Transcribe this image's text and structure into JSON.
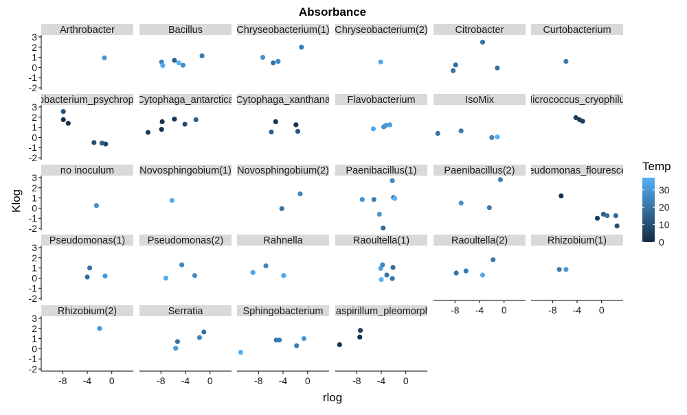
{
  "chart_data": {
    "type": "scatter",
    "title": "Absorbance",
    "xlabel": "rlog",
    "ylabel": "Klog",
    "xlim": [
      -11.5,
      3.5
    ],
    "ylim": [
      -2.2,
      3.2
    ],
    "x_ticks": [
      -8,
      -4,
      0
    ],
    "y_ticks": [
      -2,
      -1,
      0,
      1,
      2,
      3
    ],
    "grid": false,
    "legend_position": "right",
    "color_legend": {
      "title": "Temp",
      "range": [
        0,
        37
      ],
      "ticks": [
        0,
        10,
        20,
        30
      ],
      "color_low": "#132B43",
      "color_high": "#56B1F7"
    },
    "panels": [
      {
        "label": "Arthrobacter",
        "points": [
          [
            -1.2,
            0.95,
            30
          ]
        ]
      },
      {
        "label": "Bacillus",
        "points": [
          [
            -7.9,
            0.55,
            25
          ],
          [
            -7.7,
            0.2,
            35
          ],
          [
            -5.8,
            0.7,
            15
          ],
          [
            -5.1,
            0.45,
            37
          ],
          [
            -4.4,
            0.22,
            27
          ],
          [
            -1.3,
            1.15,
            22
          ]
        ]
      },
      {
        "label": "Chryseobacterium(1)",
        "points": [
          [
            -7.3,
            1.0,
            28
          ],
          [
            -5.6,
            0.45,
            20
          ],
          [
            -4.8,
            0.6,
            25
          ],
          [
            -1.0,
            2.0,
            22
          ]
        ]
      },
      {
        "label": "Chryseobacterium(2)",
        "points": [
          [
            -4.1,
            0.55,
            35
          ]
        ]
      },
      {
        "label": "Citrobacter",
        "points": [
          [
            -8.3,
            -0.3,
            20
          ],
          [
            -7.9,
            0.25,
            18
          ],
          [
            -3.5,
            2.5,
            20
          ],
          [
            -1.1,
            -0.05,
            20
          ]
        ]
      },
      {
        "label": "Curtobacterium",
        "points": [
          [
            -5.8,
            0.6,
            22
          ]
        ]
      },
      {
        "label": "Arthrobacterium_psychrophilum",
        "points": [
          [
            -7.9,
            2.55,
            12
          ],
          [
            -7.9,
            1.75,
            2
          ],
          [
            -7.1,
            1.4,
            2
          ],
          [
            -2.9,
            -0.5,
            10
          ],
          [
            -1.6,
            -0.55,
            15
          ],
          [
            -1.0,
            -0.65,
            8
          ]
        ]
      },
      {
        "label": "Cytophaga_antarctica",
        "points": [
          [
            -10.1,
            0.5,
            5
          ],
          [
            -7.8,
            1.55,
            2
          ],
          [
            -7.9,
            0.8,
            2
          ],
          [
            -5.8,
            1.8,
            2
          ],
          [
            -4.1,
            1.3,
            10
          ],
          [
            -2.3,
            1.75,
            15
          ]
        ]
      },
      {
        "label": "Cytophaga_xanthana",
        "points": [
          [
            -5.2,
            1.55,
            2
          ],
          [
            -5.9,
            0.55,
            15
          ],
          [
            -1.9,
            1.25,
            2
          ],
          [
            -1.6,
            0.6,
            12
          ]
        ]
      },
      {
        "label": "Flavobacterium",
        "points": [
          [
            -5.3,
            0.85,
            35
          ],
          [
            -3.6,
            1.05,
            28
          ],
          [
            -3.2,
            1.2,
            30
          ],
          [
            -2.6,
            1.25,
            33
          ]
        ]
      },
      {
        "label": "IsoMix",
        "points": [
          [
            -10.8,
            0.4,
            20
          ],
          [
            -7.0,
            0.65,
            22
          ],
          [
            -2.0,
            0.0,
            25
          ],
          [
            -1.1,
            0.05,
            37
          ]
        ]
      },
      {
        "label": "Micrococcus_cryophilus",
        "points": [
          [
            -4.2,
            1.95,
            5
          ],
          [
            -3.6,
            1.75,
            5
          ],
          [
            -3.1,
            1.6,
            5
          ]
        ]
      },
      {
        "label": "no inoculum",
        "points": [
          [
            -2.5,
            0.25,
            28
          ]
        ]
      },
      {
        "label": "Novosphingobium(1)",
        "points": [
          [
            -6.2,
            0.75,
            35
          ]
        ]
      },
      {
        "label": "Novosphingobium(2)",
        "points": [
          [
            -4.2,
            -0.05,
            20
          ],
          [
            -1.2,
            1.4,
            25
          ]
        ]
      },
      {
        "label": "Paenibacillus(1)",
        "points": [
          [
            -7.1,
            0.85,
            28
          ],
          [
            -5.2,
            0.85,
            22
          ],
          [
            -4.3,
            -0.6,
            30
          ],
          [
            -3.7,
            -1.95,
            18
          ],
          [
            -2.2,
            2.7,
            25
          ],
          [
            -2.0,
            1.05,
            20
          ],
          [
            -1.8,
            0.95,
            37
          ]
        ]
      },
      {
        "label": "Paenibacillus(2)",
        "points": [
          [
            -7.0,
            0.5,
            28
          ],
          [
            -2.4,
            0.05,
            22
          ],
          [
            -0.6,
            2.8,
            25
          ]
        ]
      },
      {
        "label": "Pseudomonas_flourescens",
        "points": [
          [
            -6.6,
            1.2,
            2
          ],
          [
            -0.7,
            -1.0,
            5
          ],
          [
            0.3,
            -0.6,
            15
          ],
          [
            0.9,
            -0.75,
            20
          ],
          [
            2.3,
            -0.75,
            17
          ],
          [
            2.5,
            -1.75,
            10
          ]
        ]
      },
      {
        "label": "Pseudomonas(1)",
        "points": [
          [
            -3.6,
            1.0,
            20
          ],
          [
            -4.0,
            0.1,
            18
          ],
          [
            -1.1,
            0.2,
            30
          ]
        ]
      },
      {
        "label": "Pseudomonas(2)",
        "points": [
          [
            -7.2,
            0.0,
            35
          ],
          [
            -4.6,
            1.3,
            25
          ],
          [
            -2.5,
            0.25,
            27
          ]
        ]
      },
      {
        "label": "Rahnella",
        "points": [
          [
            -8.9,
            0.55,
            33
          ],
          [
            -6.8,
            1.2,
            25
          ],
          [
            -3.9,
            0.25,
            35
          ]
        ]
      },
      {
        "label": "Raoultella(1)",
        "points": [
          [
            -4.1,
            0.95,
            33
          ],
          [
            -3.8,
            1.3,
            25
          ],
          [
            -3.1,
            0.3,
            20
          ],
          [
            -2.1,
            1.05,
            18
          ],
          [
            -4.0,
            -0.15,
            37
          ],
          [
            -2.2,
            -0.05,
            20
          ]
        ]
      },
      {
        "label": "Raoultella(2)",
        "points": [
          [
            -7.8,
            0.5,
            20
          ],
          [
            -6.2,
            0.7,
            22
          ],
          [
            -3.5,
            0.3,
            35
          ],
          [
            -1.8,
            1.8,
            22
          ]
        ]
      },
      {
        "label": "Rhizobium(1)",
        "points": [
          [
            -6.9,
            0.85,
            22
          ],
          [
            -5.8,
            0.85,
            30
          ]
        ]
      },
      {
        "label": "Rhizobium(2)",
        "points": [
          [
            -2.0,
            2.0,
            30
          ]
        ]
      },
      {
        "label": "Serratia",
        "points": [
          [
            -5.3,
            0.7,
            20
          ],
          [
            -5.6,
            0.05,
            30
          ],
          [
            -1.7,
            1.1,
            25
          ],
          [
            -1.0,
            1.65,
            20
          ]
        ]
      },
      {
        "label": "Sphingobacterium",
        "points": [
          [
            -10.9,
            -0.35,
            37
          ],
          [
            -5.1,
            0.85,
            20
          ],
          [
            -4.6,
            0.85,
            22
          ],
          [
            -1.8,
            0.3,
            22
          ],
          [
            -0.6,
            1.0,
            30
          ]
        ]
      },
      {
        "label": "Aquaspirillum_pleomorphum",
        "points": [
          [
            -10.8,
            0.4,
            2
          ],
          [
            -7.4,
            1.8,
            5
          ],
          [
            -7.5,
            1.15,
            2
          ]
        ]
      }
    ]
  }
}
